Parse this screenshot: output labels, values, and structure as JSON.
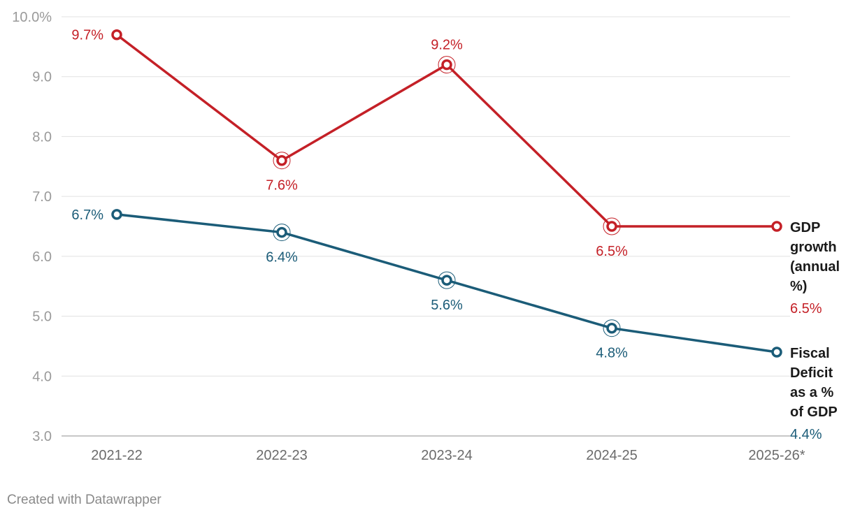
{
  "chart_data": {
    "type": "line",
    "categories": [
      "2021-22",
      "2022-23",
      "2023-24",
      "2024-25",
      "2025-26*"
    ],
    "ylim": [
      3.0,
      10.0
    ],
    "yticks": [
      3.0,
      4.0,
      5.0,
      6.0,
      7.0,
      8.0,
      9.0,
      10.0
    ],
    "ytick_labels": [
      "3.0",
      "4.0",
      "5.0",
      "6.0",
      "7.0",
      "8.0",
      "9.0",
      "10.0%"
    ],
    "grid": true,
    "legend": "direct labels at line ends (right)",
    "series": [
      {
        "name_lines": [
          "GDP",
          "growth",
          "(annual",
          "%)"
        ],
        "end_label": "6.5%",
        "color": "#c42027",
        "values": [
          9.7,
          7.6,
          9.2,
          6.5,
          6.5
        ],
        "data_labels": [
          "9.7%",
          "7.6%",
          "9.2%",
          "6.5%",
          ""
        ],
        "label_positions": [
          "left",
          "below",
          "above",
          "below",
          "none"
        ]
      },
      {
        "name_lines": [
          "Fiscal",
          "Deficit",
          "as a %",
          "of GDP"
        ],
        "end_label": "4.4%",
        "color": "#1b5c78",
        "values": [
          6.7,
          6.4,
          5.6,
          4.8,
          4.4
        ],
        "data_labels": [
          "6.7%",
          "6.4%",
          "5.6%",
          "4.8%",
          ""
        ],
        "label_positions": [
          "left",
          "below",
          "below",
          "below",
          "none"
        ]
      }
    ]
  },
  "footer": {
    "credit": "Created with Datawrapper"
  }
}
